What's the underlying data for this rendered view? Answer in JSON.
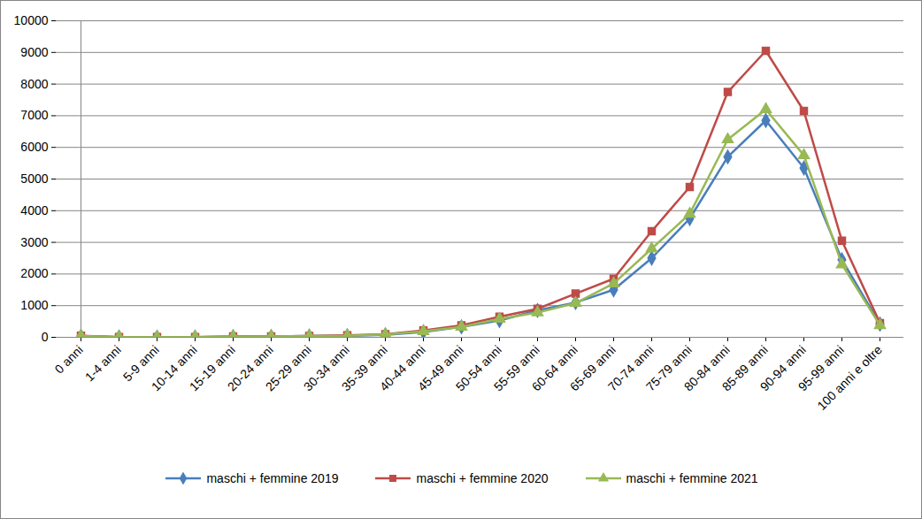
{
  "chart_data": {
    "type": "line",
    "categories": [
      "0 anni",
      "1-4 anni",
      "5-9 anni",
      "10-14 anni",
      "15-19 anni",
      "20-24 anni",
      "25-29 anni",
      "30-34 anni",
      "35-39 anni",
      "40-44 anni",
      "45-49 anni",
      "50-54 anni",
      "55-59 anni",
      "60-64 anni",
      "65-69 anni",
      "70-74 anni",
      "75-79 anni",
      "80-84 anni",
      "85-89 anni",
      "90-94 anni",
      "95-99 anni",
      "100 anni e oltre"
    ],
    "series": [
      {
        "name": "maschi + femmine 2019",
        "color": "#4a7ebb",
        "marker": "diamond",
        "values": [
          40,
          10,
          5,
          8,
          20,
          25,
          40,
          50,
          80,
          170,
          330,
          530,
          850,
          1100,
          1500,
          2500,
          3750,
          5700,
          6850,
          5350,
          2450,
          420
        ]
      },
      {
        "name": "maschi + femmine 2020",
        "color": "#be4b48",
        "marker": "square",
        "values": [
          50,
          10,
          5,
          8,
          25,
          30,
          45,
          60,
          100,
          220,
          380,
          650,
          900,
          1380,
          1850,
          3350,
          4750,
          7750,
          9050,
          7150,
          3050,
          450
        ]
      },
      {
        "name": "maschi + femmine 2021",
        "color": "#98b954",
        "marker": "triangle",
        "values": [
          40,
          10,
          5,
          8,
          20,
          25,
          40,
          50,
          90,
          190,
          330,
          580,
          780,
          1080,
          1700,
          2800,
          3900,
          6250,
          7200,
          5750,
          2300,
          380
        ]
      }
    ],
    "ylim": [
      0,
      10000
    ],
    "yticks": [
      0,
      1000,
      2000,
      3000,
      4000,
      5000,
      6000,
      7000,
      8000,
      9000,
      10000
    ],
    "grid": true,
    "legend": "bottom"
  }
}
